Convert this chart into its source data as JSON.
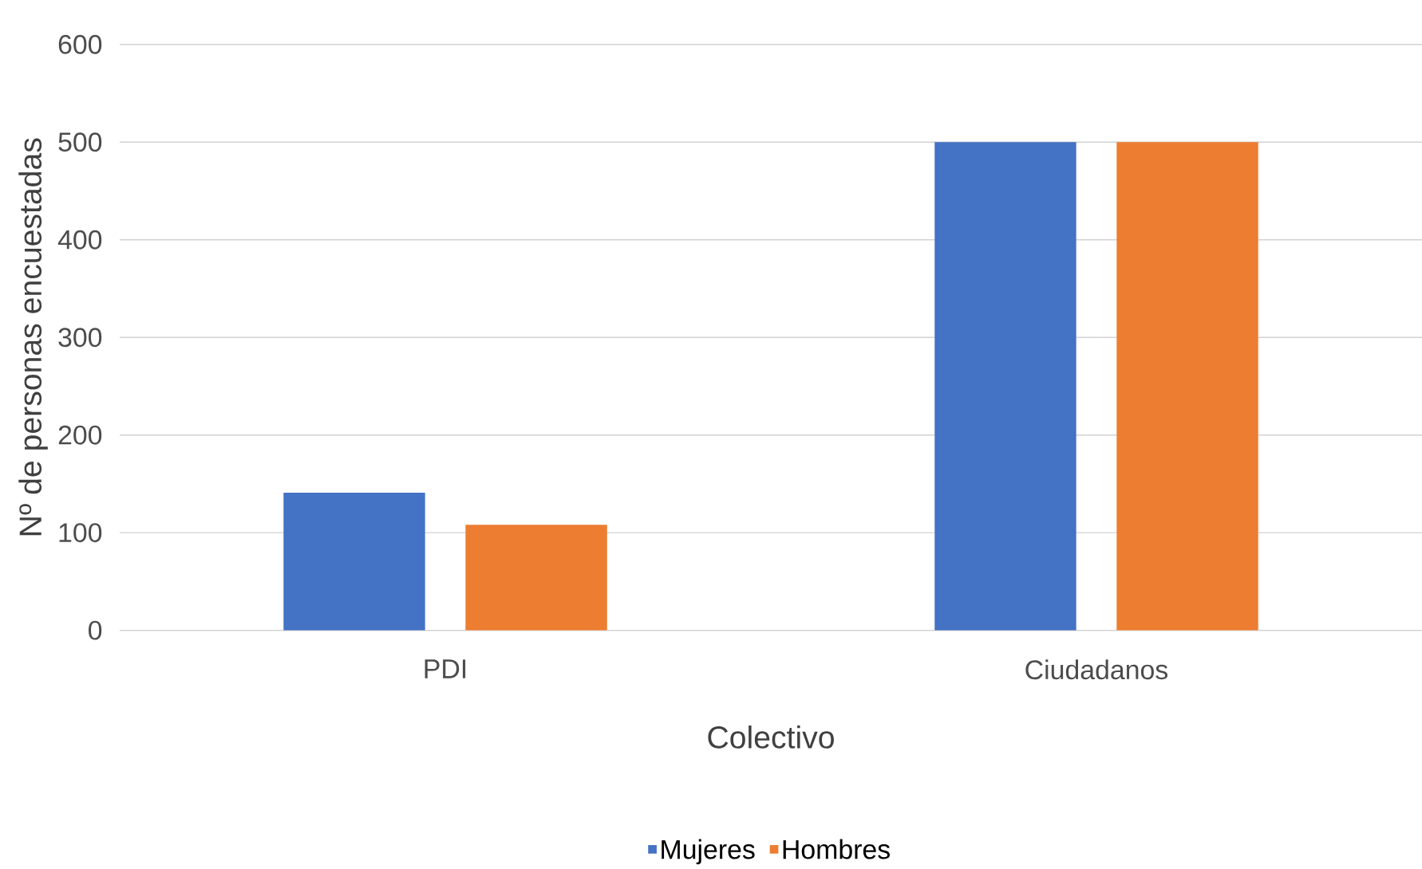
{
  "chart_data": {
    "type": "bar",
    "xlabel": "Colectivo",
    "ylabel": "Nº de personas encuestadas",
    "categories": [
      "PDI",
      "Ciudadanos"
    ],
    "series": [
      {
        "name": "Mujeres",
        "color": "#4472c4",
        "values": [
          141,
          500
        ]
      },
      {
        "name": "Hombres",
        "color": "#ed7d31",
        "values": [
          108,
          500
        ]
      }
    ],
    "ylim": [
      0,
      600
    ],
    "yticks": [
      0,
      100,
      200,
      300,
      400,
      500,
      600
    ],
    "grid": "y",
    "legend": "bottom"
  }
}
